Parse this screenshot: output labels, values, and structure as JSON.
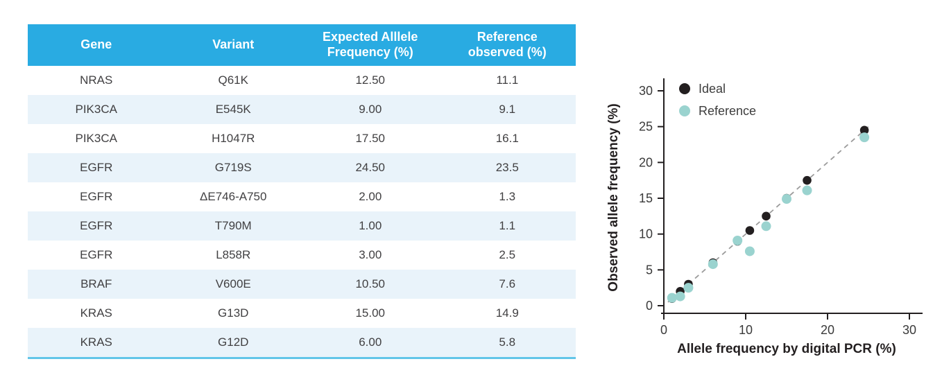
{
  "table": {
    "columns": [
      "Gene",
      "Variant",
      "Expected Alllele\nFrequency (%)",
      "Reference\nobserved (%)"
    ],
    "rows": [
      [
        "NRAS",
        "Q61K",
        "12.50",
        "11.1"
      ],
      [
        "PIK3CA",
        "E545K",
        "9.00",
        "9.1"
      ],
      [
        "PIK3CA",
        "H1047R",
        "17.50",
        "16.1"
      ],
      [
        "EGFR",
        "G719S",
        "24.50",
        "23.5"
      ],
      [
        "EGFR",
        "ΔE746-A750",
        "2.00",
        "1.3"
      ],
      [
        "EGFR",
        "T790M",
        "1.00",
        "1.1"
      ],
      [
        "EGFR",
        "L858R",
        "3.00",
        "2.5"
      ],
      [
        "BRAF",
        "V600E",
        "10.50",
        "7.6"
      ],
      [
        "KRAS",
        "G13D",
        "15.00",
        "14.9"
      ],
      [
        "KRAS",
        "G12D",
        "6.00",
        "5.8"
      ]
    ],
    "colors": {
      "header_bg": "#29abe2",
      "header_text": "#ffffff",
      "stripe_bg": "#e9f3fa",
      "bottom_border": "#62c5e8",
      "text": "#414042"
    }
  },
  "chart_data": {
    "type": "scatter",
    "title": "",
    "xlabel": "Allele frequency by digital PCR (%)",
    "ylabel": "Observed allele frequency (%)",
    "xlim": [
      0,
      32
    ],
    "ylim": [
      0,
      31
    ],
    "xticks": [
      0,
      10,
      20,
      30
    ],
    "yticks": [
      0,
      5,
      10,
      15,
      20,
      25,
      30
    ],
    "grid": false,
    "axis_color": "#231f20",
    "x": [
      1.0,
      2.0,
      3.0,
      6.0,
      9.0,
      10.5,
      12.5,
      15.0,
      17.5,
      24.5
    ],
    "series": [
      {
        "name": "Ideal",
        "color": "#231f20",
        "values": [
          1.0,
          2.0,
          3.0,
          6.0,
          9.0,
          10.5,
          12.5,
          15.0,
          17.5,
          24.5
        ]
      },
      {
        "name": "Reference",
        "color": "#9ad3cf",
        "values": [
          1.1,
          1.3,
          2.5,
          5.8,
          9.1,
          7.6,
          11.1,
          14.9,
          16.1,
          23.5
        ]
      }
    ],
    "identity_line": {
      "from": 0.5,
      "to": 25.2,
      "color": "#9b9b9b",
      "style": "dashed"
    },
    "legend": {
      "position": "top-left",
      "entries": [
        "Ideal",
        "Reference"
      ]
    }
  }
}
